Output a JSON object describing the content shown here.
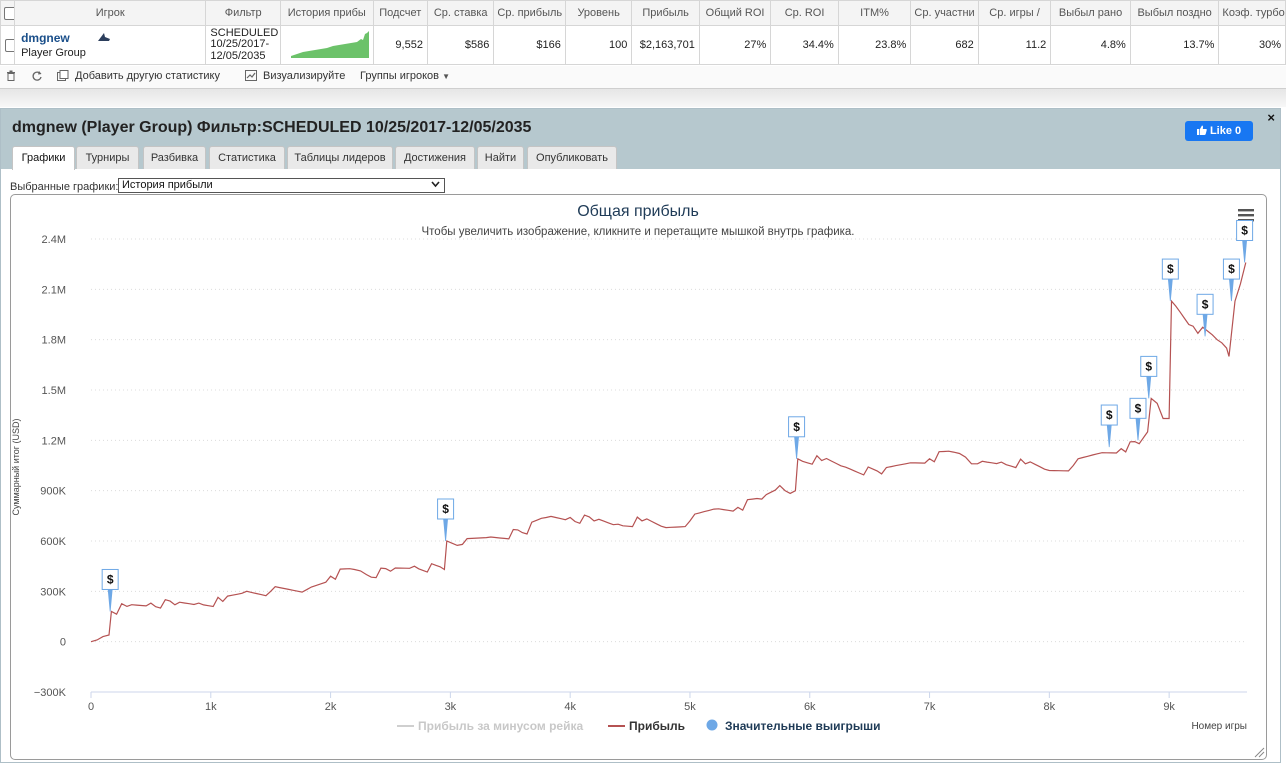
{
  "table": {
    "headers": [
      "",
      "Игрок",
      "Фильтр",
      "История прибы",
      "Подсчет",
      "Ср. ставка",
      "Ср. прибыль",
      "Уровень",
      "Прибыль",
      "Общий ROI",
      "Ср. ROI",
      "ITM%",
      "Ср. участни",
      "Ср. игры /",
      "Выбыл рано",
      "Выбыл поздно",
      "Коэф. турбо"
    ],
    "row": {
      "player_name": "dmgnew",
      "player_group": "Player Group",
      "filter_line1": "SCHEDULED",
      "filter_line2": "10/25/2017-",
      "filter_line3": "12/05/2035",
      "count": "9,552",
      "avg_stake": "$586",
      "avg_profit": "$166",
      "level": "100",
      "profit": "$2,163,701",
      "total_roi": "27%",
      "avg_roi": "34.4%",
      "itm": "23.8%",
      "avg_entrants": "682",
      "avg_games": "11.2",
      "early_out": "4.8%",
      "late_out": "13.7%",
      "turbo_ratio": "30%"
    }
  },
  "actions": {
    "add_stat": "Добавить другую статистику",
    "visualize": "Визуализируйте",
    "player_groups": "Группы игроков"
  },
  "popup": {
    "title": "dmgnew (Player Group) Фильтр:SCHEDULED 10/25/2017-12/05/2035",
    "close": "×",
    "like": "Like 0",
    "tabs": [
      "Графики",
      "Турниры",
      "Разбивка",
      "Статистика",
      "Таблицы лидеров",
      "Достижения",
      "Найти",
      "Опубликовать"
    ],
    "select_label": "Выбранные графики:",
    "select_value": "История прибыли"
  },
  "colors": {
    "profit_line": "#b55252",
    "rake_line": "#cfcfcf",
    "big_wins": "#6ea8e6",
    "title": "#1f3b57"
  },
  "icons": [
    "trash-icon",
    "refresh-icon",
    "add-stat-icon",
    "chart-icon",
    "caret-down-icon",
    "hamburger-menu-icon",
    "close-icon",
    "facebook-thumb-icon"
  ],
  "chart_data": {
    "type": "line",
    "title": "Общая прибыль",
    "subtitle": "Чтобы увеличить изображение, кликните и перетащите мышкой внутрь графика.",
    "ylabel": "Суммарный итог (USD)",
    "xlabel": "Номер игры",
    "xlim": [
      0,
      9650
    ],
    "ylim": [
      -300000,
      2400000
    ],
    "x_ticks": [
      0,
      1000,
      2000,
      3000,
      4000,
      5000,
      6000,
      7000,
      8000,
      9000
    ],
    "x_tick_labels": [
      "0",
      "1k",
      "2k",
      "3k",
      "4k",
      "5k",
      "6k",
      "7k",
      "8k",
      "9k"
    ],
    "y_ticks": [
      -300000,
      0,
      300000,
      600000,
      900000,
      1200000,
      1500000,
      1800000,
      2100000,
      2400000
    ],
    "y_tick_labels": [
      "−300K",
      "0",
      "300K",
      "600K",
      "900K",
      "1.2M",
      "1.5M",
      "1.8M",
      "2.1M",
      "2.4M"
    ],
    "legend": [
      "Прибыль за минусом рейка",
      "Прибыль",
      "Значительные выигрыши"
    ],
    "legend_position": "bottom",
    "grid": true,
    "series": [
      {
        "name": "Прибыль",
        "x": [
          0,
          50,
          100,
          150,
          170,
          300,
          500,
          700,
          900,
          1100,
          1300,
          1500,
          1800,
          2000,
          2200,
          2300,
          2500,
          2700,
          2950,
          2970,
          3100,
          3300,
          3600,
          3800,
          4000,
          4200,
          4400,
          4600,
          4800,
          5000,
          5200,
          5400,
          5600,
          5750,
          5880,
          5900,
          6100,
          6300,
          6600,
          6800,
          7000,
          7200,
          7300,
          7400,
          7600,
          7800,
          8000,
          8200,
          8400,
          8600,
          8750,
          8770,
          8820,
          8850,
          8900,
          8950,
          9000,
          9020,
          9200,
          9400,
          9480,
          9500,
          9550,
          9640
        ],
        "y": [
          0,
          10000,
          30000,
          40000,
          180000,
          210000,
          230000,
          220000,
          230000,
          240000,
          300000,
          300000,
          310000,
          390000,
          430000,
          400000,
          420000,
          450000,
          430000,
          600000,
          580000,
          620000,
          650000,
          740000,
          740000,
          720000,
          700000,
          720000,
          680000,
          720000,
          790000,
          800000,
          850000,
          930000,
          900000,
          1090000,
          1080000,
          1040000,
          1000000,
          1060000,
          1090000,
          1130000,
          1100000,
          1060000,
          1070000,
          1060000,
          1020000,
          1050000,
          1120000,
          1150000,
          1180000,
          1200000,
          1250000,
          1450000,
          1420000,
          1330000,
          1330000,
          2030000,
          1880000,
          1800000,
          1750000,
          1700000,
          2030000,
          2260000
        ]
      }
    ],
    "big_wins": [
      {
        "x": 160,
        "y": 180000
      },
      {
        "x": 2960,
        "y": 600000
      },
      {
        "x": 5890,
        "y": 1090000
      },
      {
        "x": 8500,
        "y": 1160000
      },
      {
        "x": 8740,
        "y": 1200000
      },
      {
        "x": 8830,
        "y": 1450000
      },
      {
        "x": 9010,
        "y": 2030000
      },
      {
        "x": 9300,
        "y": 1820000
      },
      {
        "x": 9520,
        "y": 2030000
      },
      {
        "x": 9630,
        "y": 2260000
      }
    ]
  }
}
